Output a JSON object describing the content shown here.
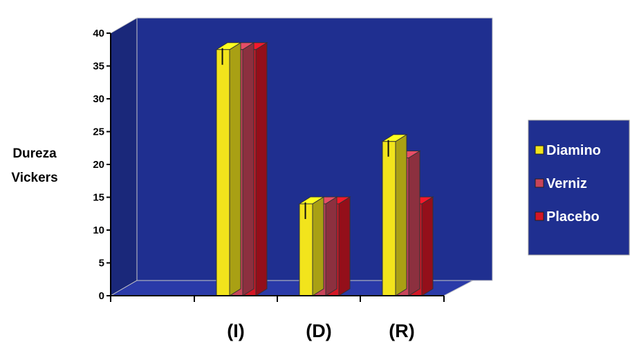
{
  "chart_data": {
    "type": "bar",
    "categories": [
      "(I)",
      "(D)",
      "(R)"
    ],
    "series": [
      {
        "name": "Diamino",
        "values": [
          37.5,
          14,
          23.5
        ]
      },
      {
        "name": "Verniz",
        "values": [
          37.5,
          14,
          21
        ]
      },
      {
        "name": "Placebo",
        "values": [
          37.5,
          14,
          14
        ]
      }
    ],
    "ylabel": [
      "Dureza",
      "Vickers"
    ],
    "ylim": [
      0,
      40
    ],
    "yticks": [
      "0",
      "5",
      "10",
      "15",
      "20",
      "25",
      "30",
      "35",
      "40"
    ],
    "legend_position": "right",
    "grid": false,
    "colors": {
      "background": "#1f2f90",
      "floor": "#2a3aa8",
      "Diamino": "#f2e41c",
      "Verniz": "#c8445a",
      "Placebo": "#d41625"
    }
  }
}
